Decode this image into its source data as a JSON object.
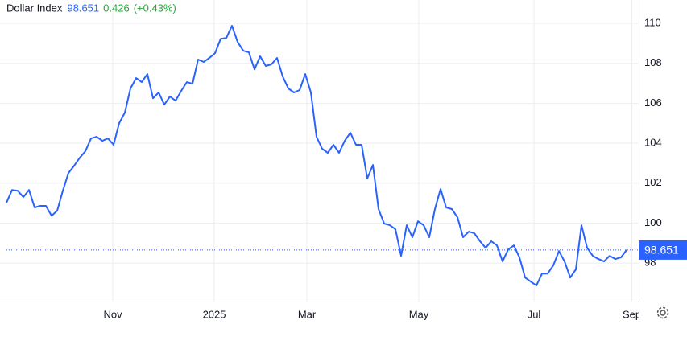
{
  "chart_data": {
    "type": "line",
    "title": "Dollar Index",
    "last_price": 98.651,
    "change": 0.426,
    "change_pct_label": "(+0.43%)",
    "series": [
      {
        "name": "Dollar Index",
        "color": "#2962ff",
        "values": [
          101.02,
          101.66,
          101.62,
          101.3,
          101.66,
          100.78,
          100.86,
          100.86,
          100.37,
          100.62,
          101.62,
          102.51,
          102.87,
          103.27,
          103.6,
          104.24,
          104.32,
          104.12,
          104.24,
          103.92,
          105.01,
          105.53,
          106.74,
          107.26,
          107.06,
          107.46,
          106.25,
          106.54,
          105.93,
          106.34,
          106.13,
          106.62,
          107.06,
          106.98,
          108.19,
          108.07,
          108.27,
          108.51,
          109.23,
          109.27,
          109.88,
          109.07,
          108.63,
          108.55,
          107.7,
          108.35,
          107.87,
          107.95,
          108.27,
          107.34,
          106.74,
          106.54,
          106.66,
          107.46,
          106.54,
          104.32,
          103.72,
          103.52,
          103.92,
          103.52,
          104.12,
          104.52,
          103.92,
          103.92,
          102.23,
          102.91,
          100.7,
          99.97,
          99.89,
          99.69,
          98.36,
          99.89,
          99.29,
          100.09,
          99.89,
          99.29,
          100.7,
          101.7,
          100.78,
          100.7,
          100.29,
          99.29,
          99.57,
          99.49,
          99.09,
          98.76,
          99.09,
          98.88,
          98.08,
          98.68,
          98.88,
          98.28,
          97.27,
          97.07,
          96.87,
          97.47,
          97.47,
          97.88,
          98.6,
          98.08,
          97.27,
          97.68,
          99.89,
          98.76,
          98.36,
          98.2,
          98.08,
          98.36,
          98.2,
          98.28,
          98.651
        ]
      }
    ],
    "xlim": [
      0,
      112.14
    ],
    "xticks": [
      {
        "value": 18.86,
        "label": "Nov"
      },
      {
        "value": 36.86,
        "label": "2025"
      },
      {
        "value": 53.29,
        "label": "Mar"
      },
      {
        "value": 73.14,
        "label": "May"
      },
      {
        "value": 93.57,
        "label": "Jul"
      },
      {
        "value": 110.93,
        "label": "Sep"
      }
    ],
    "ylim": [
      96.07,
      111.17
    ],
    "yticks": [
      98,
      100,
      102,
      104,
      106,
      108,
      110
    ],
    "grid": true
  }
}
